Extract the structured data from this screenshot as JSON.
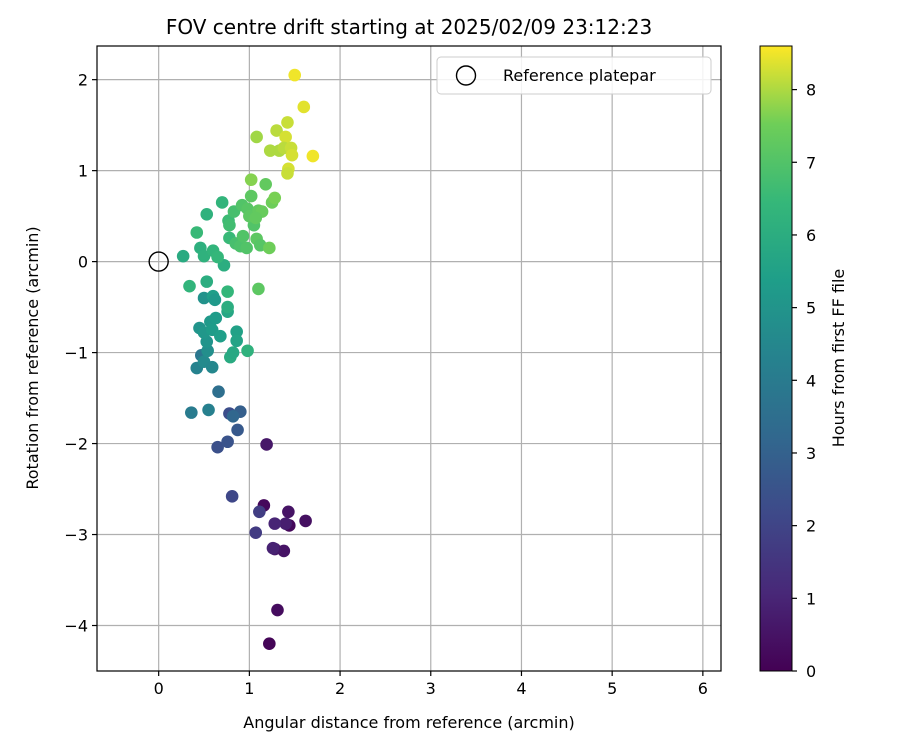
{
  "chart_data": {
    "type": "scatter",
    "title": "FOV centre drift starting at 2025/02/09 23:12:23",
    "xlabel": "Angular distance from reference (arcmin)",
    "ylabel": "Rotation from reference (arcmin)",
    "xlim": [
      -0.68,
      6.2
    ],
    "ylim": [
      -4.5,
      2.37
    ],
    "xticks": [
      0,
      1,
      2,
      3,
      4,
      5,
      6
    ],
    "yticks": [
      -4,
      -3,
      -2,
      -1,
      0,
      1,
      2
    ],
    "xtick_labels": [
      "0",
      "1",
      "2",
      "3",
      "4",
      "5",
      "6"
    ],
    "ytick_labels": [
      "−4",
      "−3",
      "−2",
      "−1",
      "0",
      "1",
      "2"
    ],
    "grid": true,
    "legend": {
      "position": "top-right",
      "entries": [
        "Reference platepar"
      ]
    },
    "reference": {
      "name": "Reference platepar",
      "x": 0,
      "y": 0
    },
    "colorbar": {
      "label": "Hours from first FF file",
      "colormap": "viridis",
      "range": [
        0,
        8.6
      ],
      "ticks": [
        0,
        1,
        2,
        3,
        4,
        5,
        6,
        7,
        8
      ],
      "tick_labels": [
        "0",
        "1",
        "2",
        "3",
        "4",
        "5",
        "6",
        "7",
        "8"
      ]
    },
    "series": [
      {
        "points": [
          [
            1.22,
            -4.2,
            0.1
          ],
          [
            1.31,
            -3.83,
            0.3
          ],
          [
            1.38,
            -3.18,
            0.5
          ],
          [
            1.28,
            -3.16,
            0.6
          ],
          [
            1.62,
            -2.85,
            0.4
          ],
          [
            1.44,
            -2.9,
            0.2
          ],
          [
            1.43,
            -2.75,
            0.5
          ],
          [
            1.4,
            -2.88,
            0.8
          ],
          [
            1.28,
            -2.88,
            1.0
          ],
          [
            1.16,
            -2.68,
            0.2
          ],
          [
            1.19,
            -2.01,
            0.6
          ],
          [
            1.26,
            -3.15,
            0.9
          ],
          [
            1.07,
            -2.98,
            1.7
          ],
          [
            1.11,
            -2.75,
            1.8
          ],
          [
            0.81,
            -2.58,
            2.1
          ],
          [
            0.65,
            -2.04,
            2.4
          ],
          [
            0.76,
            -1.98,
            2.5
          ],
          [
            0.87,
            -1.85,
            2.7
          ],
          [
            0.9,
            -1.65,
            2.9
          ],
          [
            0.78,
            -1.67,
            2.3
          ],
          [
            0.82,
            -1.7,
            3.2
          ],
          [
            0.66,
            -1.43,
            3.5
          ],
          [
            0.36,
            -1.66,
            4.0
          ],
          [
            0.55,
            -1.63,
            4.2
          ],
          [
            0.42,
            -1.17,
            4.3
          ],
          [
            0.47,
            -1.03,
            3.8
          ],
          [
            0.5,
            -1.1,
            4.6
          ],
          [
            0.59,
            -1.16,
            4.5
          ],
          [
            0.54,
            -0.98,
            4.8
          ],
          [
            0.53,
            -0.88,
            5.0
          ],
          [
            0.45,
            -0.73,
            5.0
          ],
          [
            0.5,
            -0.78,
            5.1
          ],
          [
            0.57,
            -0.66,
            5.2
          ],
          [
            0.59,
            -0.75,
            5.3
          ],
          [
            0.63,
            -0.62,
            5.3
          ],
          [
            0.68,
            -0.82,
            5.4
          ],
          [
            0.86,
            -0.77,
            5.5
          ],
          [
            0.86,
            -0.87,
            5.6
          ],
          [
            0.79,
            -1.05,
            5.9
          ],
          [
            0.82,
            -1.0,
            5.8
          ],
          [
            0.98,
            -0.98,
            6.2
          ],
          [
            0.5,
            -0.4,
            4.9
          ],
          [
            0.6,
            -0.38,
            5.4
          ],
          [
            0.62,
            -0.42,
            5.2
          ],
          [
            0.76,
            -0.55,
            5.7
          ],
          [
            0.76,
            -0.5,
            6.0
          ],
          [
            0.76,
            -0.33,
            6.4
          ],
          [
            0.53,
            -0.22,
            6.0
          ],
          [
            0.34,
            -0.27,
            6.3
          ],
          [
            0.72,
            -0.04,
            6.0
          ],
          [
            0.27,
            0.06,
            5.9
          ],
          [
            0.46,
            0.15,
            6.1
          ],
          [
            0.5,
            0.06,
            6.2
          ],
          [
            0.6,
            0.12,
            6.3
          ],
          [
            0.65,
            0.05,
            6.4
          ],
          [
            0.78,
            0.26,
            6.5
          ],
          [
            0.42,
            0.32,
            6.5
          ],
          [
            0.53,
            0.52,
            6.2
          ],
          [
            0.7,
            0.65,
            6.3
          ],
          [
            0.77,
            0.45,
            6.6
          ],
          [
            0.78,
            0.4,
            6.7
          ],
          [
            0.85,
            0.2,
            6.8
          ],
          [
            0.83,
            0.55,
            6.8
          ],
          [
            0.9,
            0.17,
            6.9
          ],
          [
            0.93,
            0.28,
            7.0
          ],
          [
            0.97,
            0.15,
            7.0
          ],
          [
            0.92,
            0.62,
            7.0
          ],
          [
            0.98,
            0.58,
            7.1
          ],
          [
            1.05,
            0.4,
            7.0
          ],
          [
            1.08,
            0.25,
            7.2
          ],
          [
            1.0,
            0.5,
            7.2
          ],
          [
            1.02,
            0.72,
            7.2
          ],
          [
            1.1,
            0.56,
            7.3
          ],
          [
            1.14,
            0.55,
            7.4
          ],
          [
            1.12,
            0.18,
            7.1
          ],
          [
            1.18,
            0.85,
            7.3
          ],
          [
            1.22,
            0.15,
            7.5
          ],
          [
            1.25,
            0.65,
            7.5
          ],
          [
            1.28,
            0.7,
            7.6
          ],
          [
            1.02,
            0.9,
            7.7
          ],
          [
            1.1,
            -0.3,
            7.2
          ],
          [
            1.07,
            0.48,
            7.3
          ],
          [
            1.08,
            1.37,
            7.9
          ],
          [
            1.23,
            1.22,
            8.0
          ],
          [
            1.3,
            1.44,
            8.1
          ],
          [
            1.33,
            1.22,
            8.0
          ],
          [
            1.42,
            1.53,
            8.2
          ],
          [
            1.4,
            1.37,
            8.3
          ],
          [
            1.38,
            1.25,
            8.1
          ],
          [
            1.46,
            1.25,
            8.2
          ],
          [
            1.43,
            1.02,
            8.3
          ],
          [
            1.42,
            0.97,
            8.2
          ],
          [
            1.6,
            1.7,
            8.4
          ],
          [
            1.5,
            2.05,
            8.5
          ],
          [
            1.7,
            1.16,
            8.5
          ],
          [
            1.47,
            1.17,
            8.3
          ]
        ]
      }
    ]
  }
}
